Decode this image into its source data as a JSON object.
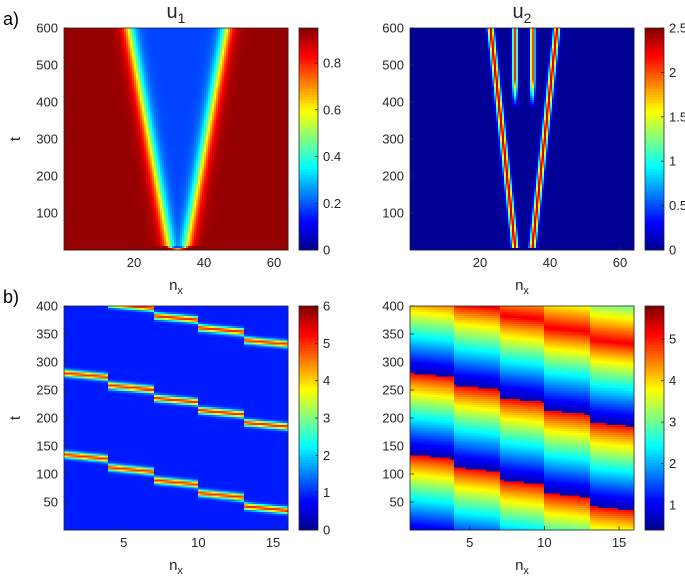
{
  "figure": {
    "panel_labels": [
      "a)",
      "b)"
    ]
  },
  "colormap": [
    "#00008F",
    "#0000FF",
    "#0080FF",
    "#00FFFF",
    "#80FF80",
    "#FFFF00",
    "#FF8000",
    "#FF0000",
    "#800000"
  ],
  "chart_data": [
    {
      "id": "a1",
      "type": "heatmap",
      "title": "u",
      "title_subscript": "1",
      "xlabel": "n",
      "xlabel_subscript": "x",
      "ylabel": "t",
      "xlim": [
        0,
        64
      ],
      "ylim": [
        0,
        600
      ],
      "xticks": [
        20,
        40,
        60
      ],
      "yticks": [
        100,
        200,
        300,
        400,
        500,
        600
      ],
      "clim": [
        0,
        0.95
      ],
      "cticks": [
        0,
        0.2,
        0.4,
        0.6,
        0.8
      ],
      "pattern": "v-band",
      "center_x": 32.5,
      "apex_t": 10,
      "apex_halfwidth": 2.5,
      "top_halfwidth": 14,
      "background_value": 0.93,
      "interior_value": 0.18
    },
    {
      "id": "a2",
      "type": "heatmap",
      "title": "u",
      "title_subscript": "2",
      "xlabel": "n",
      "xlabel_subscript": "x",
      "ylabel": "",
      "xlim": [
        0,
        64
      ],
      "ylim": [
        0,
        600
      ],
      "xticks": [
        20,
        40,
        60
      ],
      "yticks": [
        100,
        200,
        300,
        400,
        500,
        600
      ],
      "clim": [
        0,
        2.5
      ],
      "cticks": [
        0,
        0.5,
        1,
        1.5,
        2,
        2.5
      ],
      "pattern": "v-lines",
      "center_x": 32.5,
      "apex_t": 10,
      "apex_halfwidth": 2.5,
      "top_halfwidth": 9.5,
      "inner_line_offset": 2.5,
      "peak_value": 2.3,
      "background_value": 0.02
    },
    {
      "id": "b1",
      "type": "heatmap",
      "title": "",
      "xlabel": "n",
      "xlabel_subscript": "x",
      "ylabel": "t",
      "xlim": [
        1,
        16
      ],
      "ylim": [
        0,
        400
      ],
      "xticks": [
        5,
        10,
        15
      ],
      "yticks": [
        50,
        100,
        150,
        200,
        250,
        300,
        350,
        400
      ],
      "clim": [
        0,
        6
      ],
      "cticks": [
        0,
        1,
        2,
        3,
        4,
        5,
        6
      ],
      "pattern": "narrow-stripes",
      "stripes": [
        {
          "t_start": 135,
          "t_end": 20
        },
        {
          "t_start": 280,
          "t_end": 170
        },
        {
          "t_start": 425,
          "t_end": 318
        }
      ],
      "peak_value": 5.0,
      "background_value": 0.9
    },
    {
      "id": "b2",
      "type": "heatmap",
      "title": "",
      "xlabel": "n",
      "xlabel_subscript": "x",
      "ylabel": "",
      "xlim": [
        1,
        16
      ],
      "ylim": [
        0,
        400
      ],
      "xticks": [
        5,
        10,
        15
      ],
      "yticks": [
        50,
        100,
        150,
        200,
        250,
        300,
        350,
        400
      ],
      "clim": [
        0.4,
        5.8
      ],
      "cticks": [
        1,
        2,
        3,
        4,
        5
      ],
      "pattern": "sawtooth",
      "fronts": [
        {
          "t_start": 135,
          "t_end": 20
        },
        {
          "t_start": 280,
          "t_end": 170
        },
        {
          "t_start": 425,
          "t_end": 318
        }
      ],
      "front_value": 5.2,
      "tail_value": 0.55
    }
  ]
}
